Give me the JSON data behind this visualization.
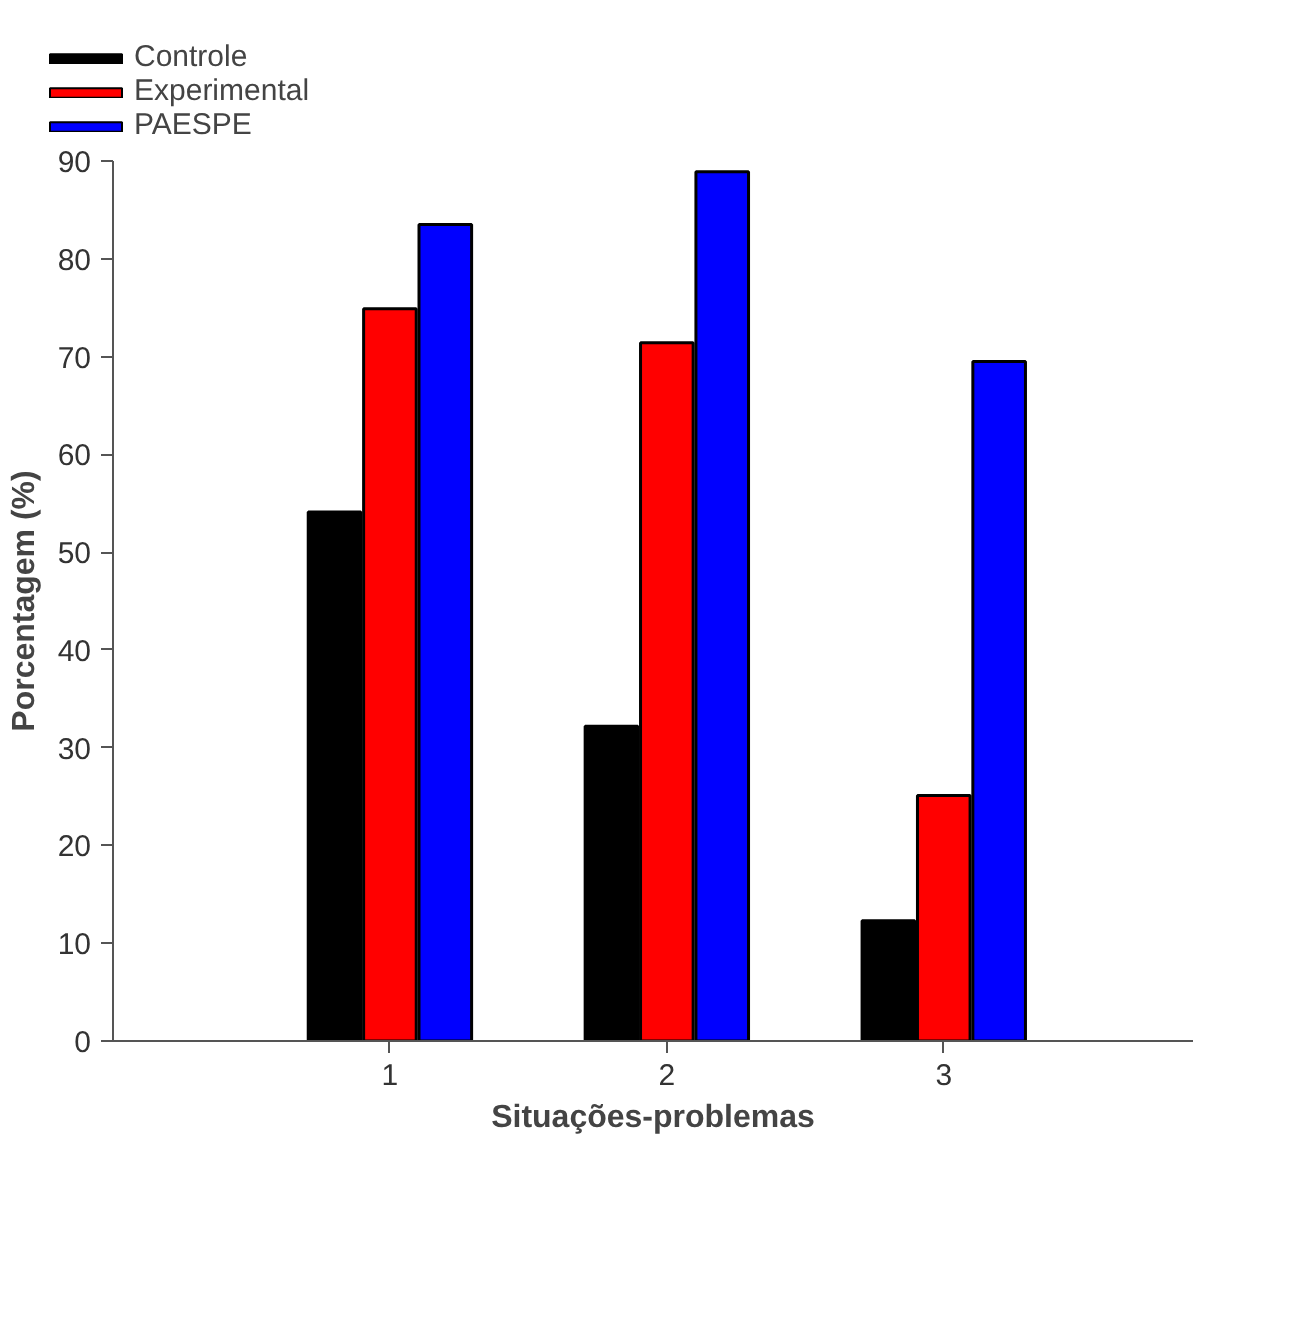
{
  "chart_data": {
    "type": "bar",
    "xlabel": "Situações-problemas",
    "ylabel": "Porcentagem (%)",
    "categories": [
      "1",
      "2",
      "3"
    ],
    "series": [
      {
        "name": "Controle",
        "color": "#000000",
        "values": [
          54.1,
          32.2,
          12.3
        ]
      },
      {
        "name": "Experimental",
        "color": "#ff0000",
        "values": [
          74.9,
          71.4,
          25.1
        ]
      },
      {
        "name": "PAESPE",
        "color": "#0000ff",
        "values": [
          83.5,
          88.9,
          69.5
        ]
      }
    ],
    "ylim": [
      0,
      90
    ],
    "yticks": [
      0,
      10,
      20,
      30,
      40,
      50,
      60,
      70,
      80,
      90
    ],
    "grid": false,
    "legend": "top left"
  }
}
